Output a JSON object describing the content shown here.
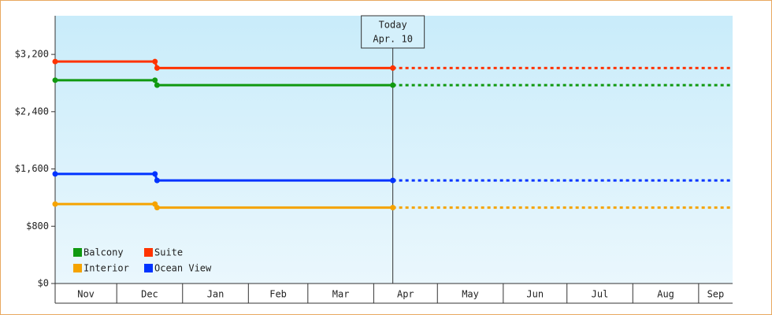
{
  "chart_data": {
    "type": "line",
    "xlim": [
      1,
      320
    ],
    "xticks": [
      {
        "value": 0,
        "label": "Nov"
      },
      {
        "value": 30,
        "label": "Dec"
      },
      {
        "value": 61,
        "label": "Jan"
      },
      {
        "value": 92,
        "label": "Feb"
      },
      {
        "value": 120,
        "label": "Mar"
      },
      {
        "value": 151,
        "label": "Apr"
      },
      {
        "value": 181,
        "label": "May"
      },
      {
        "value": 212,
        "label": "Jun"
      },
      {
        "value": 242,
        "label": "Jul"
      },
      {
        "value": 273,
        "label": "Aug"
      },
      {
        "value": 304,
        "label": "Sep"
      }
    ],
    "ylim": [
      0,
      3740
    ],
    "yticks": [
      {
        "value": 0,
        "label": "$0"
      },
      {
        "value": 800,
        "label": "$800"
      },
      {
        "value": 1600,
        "label": "$1,600"
      },
      {
        "value": 2400,
        "label": "$2,400"
      },
      {
        "value": 3200,
        "label": "$3,200"
      }
    ],
    "today": {
      "x": 160,
      "label": "Today",
      "date": "Apr. 10"
    },
    "x": [
      1,
      48,
      49,
      160,
      320
    ],
    "series": [
      {
        "name": "Balcony",
        "color": "#109910",
        "values": [
          2840,
          2840,
          2770,
          2770,
          2770
        ]
      },
      {
        "name": "Suite",
        "color": "#ff3300",
        "values": [
          3100,
          3100,
          3010,
          3010,
          3010
        ]
      },
      {
        "name": "Interior",
        "color": "#f5a300",
        "values": [
          1110,
          1110,
          1060,
          1060,
          1060
        ]
      },
      {
        "name": "Ocean View",
        "color": "#0033ff",
        "values": [
          1530,
          1530,
          1440,
          1440,
          1440
        ]
      }
    ],
    "legend": "lower left"
  }
}
